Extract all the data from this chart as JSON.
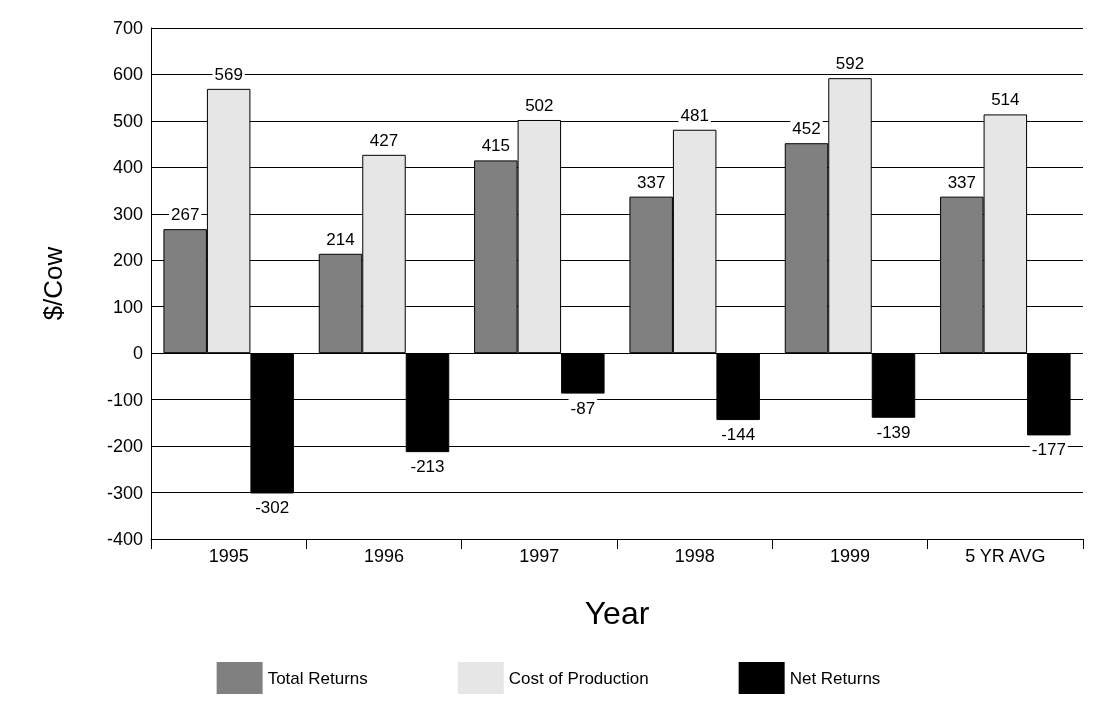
{
  "chart_data": {
    "type": "bar",
    "xlabel": "Year",
    "ylabel": "$/Cow",
    "categories": [
      "1995",
      "1996",
      "1997",
      "1998",
      "1999",
      "5 YR AVG"
    ],
    "series": [
      {
        "name": "Total Returns",
        "color": "#808080",
        "values": [
          267,
          214,
          415,
          337,
          452,
          337
        ]
      },
      {
        "name": "Cost of Production",
        "color": "#e6e6e6",
        "values": [
          569,
          427,
          502,
          481,
          592,
          514
        ]
      },
      {
        "name": "Net Returns",
        "color": "#000000",
        "values": [
          -302,
          -213,
          -87,
          -144,
          -139,
          -177
        ]
      }
    ],
    "ylim": [
      -400,
      700
    ],
    "yticks": [
      -400,
      -300,
      -200,
      -100,
      0,
      100,
      200,
      300,
      400,
      500,
      600,
      700
    ],
    "grid": "y",
    "legend": "bottom",
    "data_labels": true
  }
}
